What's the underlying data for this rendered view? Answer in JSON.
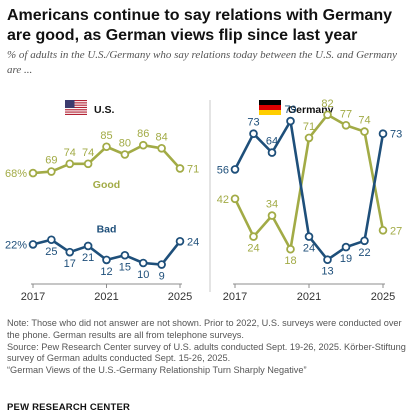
{
  "title": "Americans continue to say relations with Germany are good, as German views flip since last year",
  "subtitle": "% of adults in the U.S./Germany who say relations today between the U.S. and Germany are ...",
  "panels": {
    "us_label": "U.S.",
    "germany_label": "Germany"
  },
  "series_labels": {
    "good": "Good",
    "bad": "Bad"
  },
  "x_tick_labels": [
    "2017",
    "2021",
    "2025"
  ],
  "colors": {
    "good": "#a2ab46",
    "bad": "#1e4f7a",
    "axis": "#8c8c8c",
    "divider": "#c8c8c8"
  },
  "chart_data": [
    {
      "type": "line",
      "panel": "U.S.",
      "x": [
        2017,
        2018,
        2019,
        2020,
        2021,
        2022,
        2023,
        2024,
        2025
      ],
      "series": [
        {
          "name": "Good",
          "values": [
            68,
            69,
            74,
            74,
            85,
            80,
            86,
            84,
            71
          ],
          "labels": [
            "68%",
            "69",
            "74",
            "74",
            "85",
            "80",
            "86",
            "84",
            "71"
          ]
        },
        {
          "name": "Bad",
          "values": [
            22,
            25,
            17,
            21,
            12,
            15,
            10,
            9,
            24
          ],
          "labels": [
            "22%",
            "25",
            "17",
            "21",
            "12",
            "15",
            "10",
            "9",
            "24"
          ]
        }
      ],
      "xlim": [
        2017,
        2025
      ],
      "ylim": [
        0,
        100
      ],
      "x_tick_labels": [
        "2017",
        "2021",
        "2025"
      ]
    },
    {
      "type": "line",
      "panel": "Germany",
      "x": [
        2017,
        2018,
        2019,
        2020,
        2021,
        2022,
        2023,
        2024,
        2025
      ],
      "series": [
        {
          "name": "Good",
          "values": [
            42,
            24,
            34,
            18,
            71,
            82,
            77,
            74,
            27
          ],
          "labels": [
            "42",
            "24",
            "34",
            "18",
            "71",
            "82",
            "77",
            "74",
            "27"
          ]
        },
        {
          "name": "Bad",
          "values": [
            56,
            73,
            64,
            79,
            24,
            13,
            19,
            22,
            73
          ],
          "labels": [
            "56",
            "73",
            "64",
            "79",
            "24",
            "13",
            "19",
            "22",
            "73"
          ]
        }
      ],
      "xlim": [
        2017,
        2025
      ],
      "ylim": [
        0,
        100
      ],
      "x_tick_labels": [
        "2017",
        "2021",
        "2025"
      ]
    }
  ],
  "notes": [
    "Note: Those who did not answer are not shown. Prior to 2022, U.S. surveys were conducted over the phone. German results are all from telephone surveys.",
    "Source: Pew Research Center survey of U.S. adults conducted Sept. 19-26, 2025. Körber-Stiftung survey of German adults conducted Sept. 15-26, 2025.",
    "“German Views of the U.S.-Germany Relationship Turn Sharply Negative”"
  ],
  "source_org": "PEW RESEARCH CENTER"
}
